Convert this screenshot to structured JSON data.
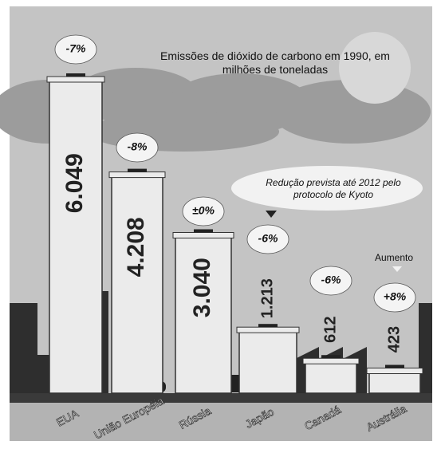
{
  "chart_data": {
    "type": "bar",
    "title": "Emissões de dióxido de carbono em 1990, em milhões de toneladas",
    "annotation": "Redução prevista até 2012 pelo protocolo de Kyoto",
    "increase_label": "Aumento",
    "categories": [
      "EUA",
      "União Européia",
      "Rússia",
      "Japão",
      "Canadá",
      "Austrália"
    ],
    "values": [
      6049,
      4208,
      3040,
      1213,
      612,
      423
    ],
    "value_labels": [
      "6.049",
      "4.208",
      "3.040",
      "1.213",
      "612",
      "423"
    ],
    "color": "#ebebeb",
    "targets": {
      "values": [
        -7,
        -8,
        0,
        -6,
        -6,
        8
      ],
      "value_labels": [
        "-7%",
        "-8%",
        "±0%",
        "-6%",
        "-6%",
        "+8%"
      ]
    }
  }
}
